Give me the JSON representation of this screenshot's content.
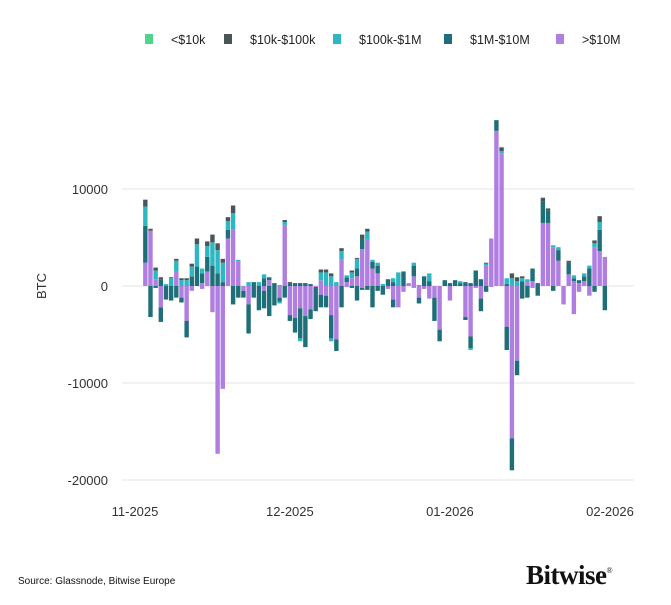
{
  "chart_data": {
    "type": "bar",
    "stacked": true,
    "title": "",
    "ylabel": "BTC",
    "xlabel": "",
    "ylim": [
      -20000,
      17500
    ],
    "yticks": [
      10000,
      0,
      -10000,
      -20000
    ],
    "ytick_labels": [
      "10000",
      "0",
      "-10000",
      "-20000"
    ],
    "xtick_labels": [
      "11-2025",
      "12-2025",
      "01-2026",
      "02-2026"
    ],
    "xtick_dates": [
      "2025-11-01",
      "2025-12-01",
      "2026-01-01",
      "2026-02-01"
    ],
    "x_range": [
      "2025-11-03",
      "2026-01-31"
    ],
    "x_step": "1 day",
    "grid": true,
    "legend_position": "top",
    "series": [
      {
        "name": "<$10k",
        "color": "#4fd48e"
      },
      {
        "name": "$10k-$100k",
        "color": "#4b5558",
        "positive": [
          700,
          200,
          300,
          200,
          0,
          100,
          200,
          200,
          200,
          300,
          600,
          0,
          500,
          800,
          700,
          400,
          400,
          800,
          0,
          0,
          0,
          0,
          0,
          0,
          0,
          0,
          0,
          200,
          100,
          0,
          0,
          100,
          0,
          0,
          300,
          300,
          300,
          0,
          300,
          0,
          200,
          100,
          400,
          300,
          0,
          0,
          0,
          0,
          0,
          0,
          0,
          0,
          0,
          0,
          0,
          0,
          0,
          0,
          0,
          0,
          0,
          0,
          0,
          0,
          0,
          0,
          100,
          0,
          0,
          400,
          0,
          500,
          400,
          200,
          0,
          0,
          0,
          400,
          200,
          0,
          0,
          0,
          200,
          0,
          0,
          0,
          0,
          300,
          600,
          0
        ]
      },
      {
        "name": "$100k-$1M",
        "color": "#2db7c2",
        "positive": [
          2000,
          0,
          900,
          0,
          200,
          800,
          1100,
          600,
          600,
          1000,
          2300,
          500,
          1100,
          2400,
          2400,
          2000,
          900,
          1700,
          200,
          0,
          400,
          0,
          400,
          400,
          0,
          0,
          100,
          300,
          0,
          0,
          0,
          0,
          0,
          0,
          800,
          1400,
          1000,
          400,
          900,
          200,
          600,
          1000,
          0,
          800,
          200,
          300,
          200,
          0,
          400,
          1400,
          0,
          0,
          300,
          100,
          0,
          800,
          0,
          0,
          0,
          0,
          0,
          200,
          0,
          0,
          0,
          0,
          200,
          0,
          0,
          200,
          600,
          800,
          500,
          300,
          300,
          0,
          0,
          0,
          0,
          200,
          300,
          0,
          0,
          300,
          0,
          300,
          300,
          400,
          800,
          0
        ],
        "negative": [
          0,
          0,
          0,
          0,
          0,
          0,
          0,
          0,
          0,
          0,
          0,
          0,
          0,
          0,
          0,
          0,
          0,
          0,
          0,
          0,
          0,
          0,
          0,
          0,
          0,
          0,
          -200,
          0,
          0,
          0,
          -300,
          0,
          0,
          0,
          0,
          0,
          -300,
          0,
          0,
          0,
          0,
          0,
          0,
          0,
          0,
          0,
          0,
          0,
          0,
          0,
          0,
          0,
          0,
          0,
          0,
          0,
          0,
          0,
          0,
          0,
          0,
          0,
          0,
          -200,
          0,
          0,
          0,
          0,
          0,
          0,
          0,
          0,
          0,
          0,
          0,
          0,
          0,
          0,
          0,
          0,
          0,
          0,
          0,
          0,
          0,
          0,
          0,
          0,
          0,
          0
        ]
      },
      {
        "name": "$1M-$10M",
        "color": "#1f6f78",
        "positive": [
          3800,
          0,
          0,
          700,
          0,
          0,
          0,
          0,
          0,
          1000,
          2000,
          1000,
          1500,
          2100,
          1300,
          400,
          900,
          0,
          0,
          0,
          0,
          400,
          0,
          800,
          300,
          300,
          0,
          0,
          300,
          300,
          300,
          200,
          200,
          0,
          0,
          0,
          0,
          0,
          0,
          500,
          0,
          800,
          1100,
          0,
          700,
          800,
          0,
          700,
          400,
          0,
          1500,
          0,
          1100,
          0,
          1000,
          500,
          0,
          0,
          600,
          300,
          600,
          300,
          400,
          300,
          1600,
          700,
          0,
          0,
          1100,
          0,
          200,
          0,
          0,
          500,
          0,
          1300,
          300,
          2200,
          1300,
          0,
          1100,
          0,
          1200,
          300,
          300,
          500,
          1800,
          0,
          2200,
          0
        ],
        "negative": [
          0,
          -3200,
          -200,
          -1500,
          -1400,
          -1500,
          -1200,
          -500,
          -1700,
          0,
          0,
          0,
          0,
          0,
          0,
          0,
          0,
          -1900,
          -1200,
          -700,
          -3000,
          -1200,
          -2500,
          -1800,
          -3100,
          -2000,
          -400,
          -1200,
          -600,
          -1500,
          -3100,
          -3200,
          -1000,
          -2500,
          -1300,
          -1200,
          -2400,
          -1200,
          -2200,
          0,
          -200,
          -1500,
          -200,
          -400,
          -2200,
          -500,
          -900,
          0,
          -800,
          0,
          0,
          0,
          0,
          -600,
          0,
          0,
          -2400,
          -1200,
          0,
          0,
          0,
          0,
          -300,
          -1200,
          0,
          -1300,
          -600,
          0,
          0,
          0,
          -2400,
          -3300,
          -1500,
          -1300,
          -1200,
          0,
          -1000,
          0,
          0,
          -500,
          0,
          0,
          0,
          0,
          0,
          0,
          0,
          -600,
          0,
          -2500
        ]
      },
      {
        "name": ">$10M",
        "color": "#b07ee0",
        "positive": [
          2400,
          5700,
          700,
          0,
          0,
          0,
          1500,
          0,
          0,
          0,
          0,
          300,
          1500,
          0,
          0,
          0,
          4900,
          5800,
          2500,
          0,
          0,
          0,
          0,
          0,
          600,
          0,
          0,
          6300,
          0,
          0,
          0,
          0,
          0,
          0,
          600,
          0,
          0,
          0,
          2700,
          400,
          800,
          1000,
          3800,
          4800,
          1800,
          1300,
          0,
          0,
          0,
          0,
          0,
          300,
          1000,
          0,
          0,
          0,
          0,
          0,
          0,
          0,
          0,
          0,
          0,
          0,
          0,
          0,
          2100,
          4900,
          16000,
          13700,
          0,
          0,
          0,
          0,
          400,
          500,
          0,
          6500,
          6500,
          4000,
          2600,
          0,
          1200,
          500,
          300,
          500,
          0,
          4000,
          3600,
          3000
        ],
        "negative": [
          0,
          0,
          0,
          -2200,
          0,
          0,
          0,
          -1200,
          -3600,
          -500,
          0,
          -300,
          0,
          -2700,
          -17300,
          -10600,
          0,
          0,
          0,
          -500,
          -1900,
          0,
          0,
          -500,
          0,
          0,
          -1200,
          0,
          -3000,
          -3300,
          -2300,
          -3100,
          -2400,
          -100,
          -900,
          -1000,
          -3000,
          -5500,
          0,
          -100,
          0,
          0,
          -200,
          0,
          0,
          0,
          0,
          -300,
          -1400,
          -2200,
          -600,
          0,
          -200,
          -1200,
          -300,
          -1300,
          -1200,
          -4500,
          0,
          -1500,
          0,
          0,
          -3200,
          -5200,
          -200,
          -1300,
          0,
          -100,
          0,
          0,
          -4200,
          -15700,
          -7700,
          0,
          0,
          -200,
          0,
          0,
          0,
          0,
          0,
          -1900,
          0,
          -2900,
          -600,
          0,
          -1000,
          0,
          0,
          0
        ]
      }
    ]
  },
  "footer": {
    "source": "Source: Glassnode, Bitwise Europe",
    "logo_text": "Bitwise",
    "logo_mark": "®"
  }
}
